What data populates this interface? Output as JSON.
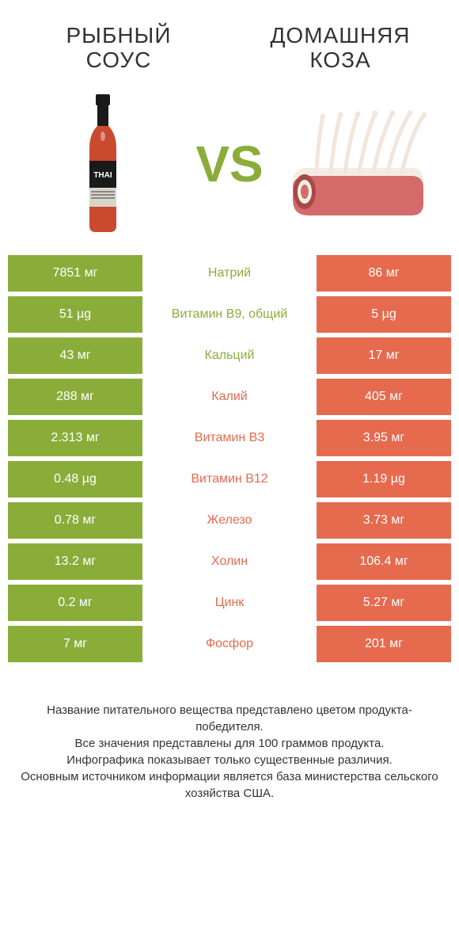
{
  "colors": {
    "left": "#8aad3a",
    "right": "#e66a4e",
    "left_label": "#8aad3a",
    "right_label": "#e66a4e",
    "text": "#333333",
    "white": "#ffffff"
  },
  "header": {
    "left_title": "РЫБНЫЙ СОУС",
    "right_title": "ДОМАШНЯЯ КОЗА",
    "vs": "VS"
  },
  "rows": [
    {
      "left": "7851 мг",
      "label": "Натрий",
      "right": "86 мг",
      "winner": "left"
    },
    {
      "left": "51 µg",
      "label": "Витамин B9, общий",
      "right": "5 µg",
      "winner": "left"
    },
    {
      "left": "43 мг",
      "label": "Кальций",
      "right": "17 мг",
      "winner": "left"
    },
    {
      "left": "288 мг",
      "label": "Калий",
      "right": "405 мг",
      "winner": "right"
    },
    {
      "left": "2.313 мг",
      "label": "Витамин B3",
      "right": "3.95 мг",
      "winner": "right"
    },
    {
      "left": "0.48 µg",
      "label": "Витамин B12",
      "right": "1.19 µg",
      "winner": "right"
    },
    {
      "left": "0.78 мг",
      "label": "Железо",
      "right": "3.73 мг",
      "winner": "right"
    },
    {
      "left": "13.2 мг",
      "label": "Холин",
      "right": "106.4 мг",
      "winner": "right"
    },
    {
      "left": "0.2 мг",
      "label": "Цинк",
      "right": "5.27 мг",
      "winner": "right"
    },
    {
      "left": "7 мг",
      "label": "Фосфор",
      "right": "201 мг",
      "winner": "right"
    }
  ],
  "footer": {
    "line1": "Название питательного вещества представлено цветом продукта-победителя.",
    "line2": "Все значения представлены для 100 граммов продукта.",
    "line3": "Инфографика показывает только существенные различия.",
    "line4": "Основным источником информации является база министерства сельского хозяйства США."
  },
  "bottle": {
    "cap": "#1a1a1a",
    "body": "#c94a2e",
    "label_bg": "#1a1a1a",
    "label_band": "#d9d4c8",
    "brand": "THAI"
  },
  "meat": {
    "bone": "#f0e6dc",
    "flesh": "#d46a6a",
    "fat": "#f5ede3",
    "dark": "#a84848"
  }
}
